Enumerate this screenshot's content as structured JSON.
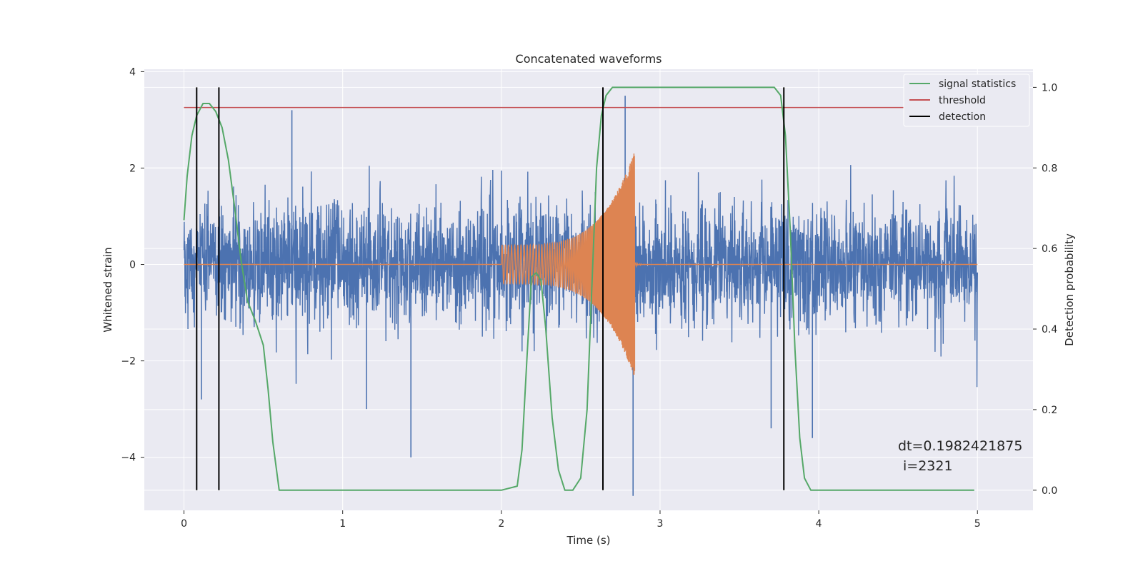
{
  "chart_data": {
    "type": "line",
    "title": "Concatenated waveforms",
    "xlabel": "Time (s)",
    "ylabel_left": "Whitened strain",
    "ylabel_right": "Detection probability",
    "xlim": [
      -0.25,
      5.35
    ],
    "ylim_left": [
      -5.1,
      4.05
    ],
    "ylim_right": [
      -0.05,
      1.045
    ],
    "x_ticks": [
      0,
      1,
      2,
      3,
      4,
      5
    ],
    "y_ticks_left": [
      -4,
      -2,
      0,
      2,
      4
    ],
    "y_ticks_right": [
      0.0,
      0.2,
      0.4,
      0.6,
      0.8,
      1.0
    ],
    "grid": true,
    "legend_position": "top-right",
    "legend": [
      "signal statistics",
      "threshold",
      "detection"
    ],
    "colors": {
      "noise": "#4c72b0",
      "signal": "#dd8452",
      "statistics": "#55a868",
      "threshold": "#c44e52",
      "detection": "#000000",
      "plot_bg": "#eaeaf2",
      "grid": "#ffffff"
    },
    "threshold_value": 0.95,
    "detections": [
      0.08,
      0.22,
      2.64,
      3.78
    ],
    "noise_series": {
      "axis": "left",
      "x_range": [
        0,
        5
      ],
      "typical_abs_peak": 2.0,
      "spikes": [
        {
          "x": 0.68,
          "y": 3.2
        },
        {
          "x": 1.43,
          "y": -4.0
        },
        {
          "x": 2.78,
          "y": 3.5
        },
        {
          "x": 2.83,
          "y": -4.8
        },
        {
          "x": 0.11,
          "y": -2.8
        },
        {
          "x": 1.15,
          "y": -3.0
        },
        {
          "x": 3.96,
          "y": -3.6
        },
        {
          "x": 3.7,
          "y": -3.4
        }
      ]
    },
    "signal_series": {
      "axis": "left",
      "chirp": {
        "start": 2.0,
        "end": 2.84,
        "amp_start": 0.4,
        "amp_end": 2.35
      }
    },
    "statistics_series": {
      "axis": "right",
      "x": [
        0,
        0.02,
        0.05,
        0.08,
        0.12,
        0.16,
        0.2,
        0.24,
        0.28,
        0.32,
        0.36,
        0.4,
        0.45,
        0.5,
        0.53,
        0.56,
        0.6,
        1.0,
        2.0,
        2.1,
        2.13,
        2.16,
        2.19,
        2.22,
        2.25,
        2.28,
        2.32,
        2.36,
        2.4,
        2.45,
        2.5,
        2.54,
        2.57,
        2.6,
        2.63,
        2.66,
        2.7,
        3.2,
        3.72,
        3.76,
        3.79,
        3.82,
        3.85,
        3.88,
        3.91,
        3.95,
        4.5,
        4.98
      ],
      "y": [
        0.67,
        0.78,
        0.88,
        0.93,
        0.96,
        0.96,
        0.94,
        0.9,
        0.82,
        0.7,
        0.57,
        0.47,
        0.42,
        0.36,
        0.25,
        0.12,
        0.0,
        0.0,
        0.0,
        0.01,
        0.1,
        0.32,
        0.53,
        0.54,
        0.52,
        0.4,
        0.18,
        0.05,
        0.0,
        0.0,
        0.03,
        0.2,
        0.5,
        0.8,
        0.93,
        0.98,
        1.0,
        1.0,
        1.0,
        0.98,
        0.88,
        0.65,
        0.35,
        0.13,
        0.03,
        0.0,
        0.0,
        0.0
      ]
    },
    "annotation": {
      "line1": "dt=0.1982421875",
      "line2": "i=2321"
    }
  }
}
